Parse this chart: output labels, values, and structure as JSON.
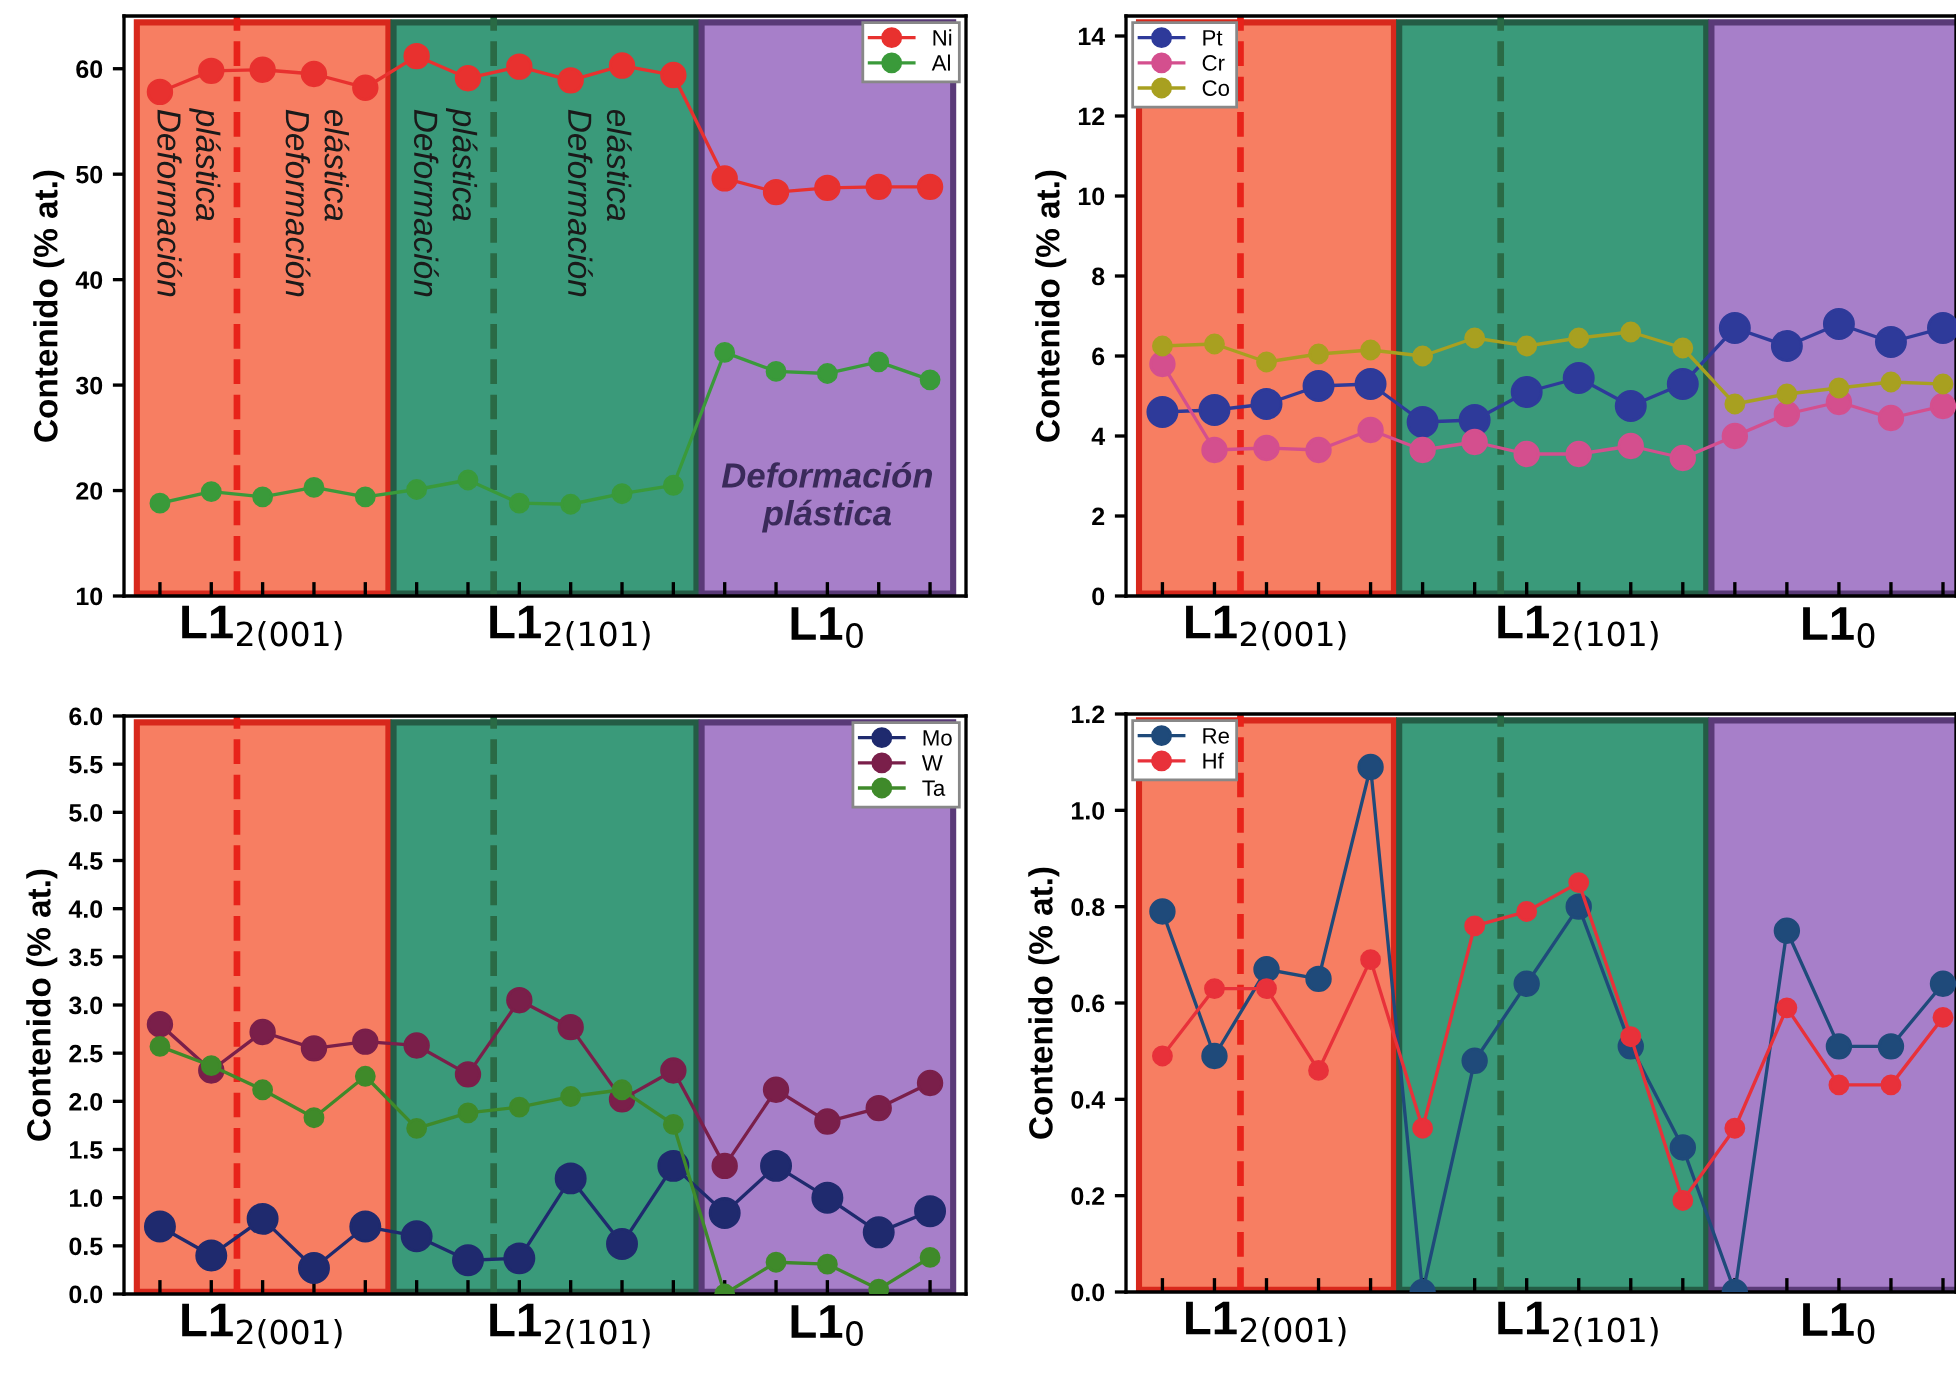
{
  "chart_data": [
    {
      "type": "line",
      "ylabel": "Contenido (% at.)",
      "ylim": [
        10,
        65
      ],
      "yticks": [
        10,
        20,
        30,
        40,
        50,
        60
      ],
      "categories": [
        null,
        null,
        "L1$_{2(001)}$",
        null,
        null,
        null,
        null,
        null,
        "L1$_{2(101)}$",
        null,
        null,
        null,
        null,
        "L1$_{0}$",
        null,
        null
      ],
      "marker": "circle",
      "grid": false,
      "legend": "top right",
      "series": [
        {
          "name": "Ni",
          "color": "#e8312f",
          "values": [
            57.8,
            59.8,
            59.9,
            59.5,
            58.2,
            61.2,
            59.1,
            60.2,
            58.9,
            60.3,
            59.4,
            49.6,
            48.3,
            48.7,
            48.8,
            48.8
          ]
        },
        {
          "name": "Al",
          "color": "#3a9a3a",
          "values": [
            18.8,
            19.9,
            19.4,
            20.3,
            19.4,
            20.1,
            21.0,
            18.8,
            18.7,
            19.7,
            20.5,
            33.1,
            31.3,
            31.1,
            32.2,
            30.5
          ]
        }
      ],
      "annotations": [
        "Deformación\nplástica",
        "Deformación\nelástica",
        "Deformación\nplástica",
        "Deformación\nelástica",
        "Deformación\nplástica"
      ]
    },
    {
      "type": "line",
      "ylabel": "Contenido (% at.)",
      "ylim": [
        0,
        14.5
      ],
      "yticks": [
        0,
        2,
        4,
        6,
        8,
        10,
        12,
        14
      ],
      "categories": [
        null,
        null,
        "L1$_{2(001)}$",
        null,
        null,
        null,
        null,
        null,
        "L1$_{2(101)}$",
        null,
        null,
        null,
        null,
        "L1$_{0}$",
        null,
        null
      ],
      "marker": "circle",
      "grid": false,
      "legend": "top left",
      "series": [
        {
          "name": "Pt",
          "color": "#2e3a9a",
          "values": [
            4.6,
            4.65,
            4.8,
            5.25,
            5.3,
            4.35,
            4.4,
            5.1,
            5.45,
            4.75,
            5.3,
            6.7,
            6.25,
            6.8,
            6.35,
            6.7
          ]
        },
        {
          "name": "Cr",
          "color": "#d44f8e",
          "values": [
            5.8,
            3.65,
            3.7,
            3.65,
            4.15,
            3.65,
            3.85,
            3.55,
            3.55,
            3.75,
            3.45,
            4.0,
            4.55,
            4.85,
            4.45,
            4.75
          ]
        },
        {
          "name": "Co",
          "color": "#a8a020",
          "values": [
            6.25,
            6.3,
            5.85,
            6.05,
            6.15,
            6.0,
            6.45,
            6.25,
            6.45,
            6.6,
            6.2,
            4.8,
            5.05,
            5.2,
            5.35,
            5.3
          ]
        }
      ]
    },
    {
      "type": "line",
      "ylabel": "Contenido (% at.)",
      "ylim": [
        0,
        6
      ],
      "yticks": [
        {
          "value": 0,
          "label": "0.0"
        },
        0.5,
        {
          "value": 1,
          "label": "1.0"
        },
        1.5,
        {
          "value": 2,
          "label": "2.0"
        },
        2.5,
        {
          "value": 3,
          "label": "3.0"
        },
        3.5,
        {
          "value": 4,
          "label": "4.0"
        },
        4.5,
        {
          "value": 5,
          "label": "5.0"
        },
        5.5,
        {
          "value": 6,
          "label": "6.0"
        }
      ],
      "categories": [
        null,
        null,
        "L1$_{2(001)}$",
        null,
        null,
        null,
        null,
        null,
        "L1$_{2(101)}$",
        null,
        null,
        null,
        null,
        "L1$_{0}$",
        null,
        null
      ],
      "marker": "circle",
      "grid": false,
      "legend": "top right",
      "series": [
        {
          "name": "Mo",
          "color": "#1f2a6e",
          "values": [
            0.7,
            0.4,
            0.78,
            0.27,
            0.7,
            0.6,
            0.35,
            0.37,
            1.2,
            0.52,
            1.33,
            0.84,
            1.33,
            1.0,
            0.64,
            0.86
          ]
        },
        {
          "name": "W",
          "color": "#7a1f4a",
          "values": [
            2.8,
            2.32,
            2.72,
            2.55,
            2.62,
            2.58,
            2.28,
            3.05,
            2.77,
            2.02,
            2.32,
            1.33,
            2.12,
            1.79,
            1.93,
            2.19
          ]
        },
        {
          "name": "Ta",
          "color": "#3f8a2a",
          "values": [
            2.57,
            2.37,
            2.12,
            1.83,
            2.26,
            1.72,
            1.88,
            1.94,
            2.05,
            2.12,
            1.76,
            0.0,
            0.33,
            0.31,
            0.05,
            0.38
          ]
        }
      ]
    },
    {
      "type": "line",
      "ylabel": "Contenido (% at.)",
      "ylim": [
        0,
        1.2
      ],
      "yticks": [
        {
          "value": 0,
          "label": "0.0"
        },
        0.2,
        0.4,
        0.6,
        0.8,
        {
          "value": 1,
          "label": "1.0"
        },
        1.2
      ],
      "categories": [
        null,
        null,
        "L1$_{2(001)}$",
        null,
        null,
        null,
        null,
        null,
        "L1$_{2(101)}$",
        null,
        null,
        null,
        null,
        "L1$_{0}$",
        null,
        null
      ],
      "marker": "circle",
      "grid": false,
      "legend": "top left",
      "series": [
        {
          "name": "Re",
          "color": "#1f4a7a",
          "values": [
            0.79,
            0.49,
            0.67,
            0.65,
            1.09,
            0.0,
            0.48,
            0.64,
            0.8,
            0.51,
            0.3,
            0.0,
            0.75,
            0.51,
            0.51,
            0.64
          ]
        },
        {
          "name": "Hf",
          "color": "#e8313a",
          "values": [
            0.49,
            0.63,
            0.63,
            0.46,
            0.69,
            0.34,
            0.76,
            0.79,
            0.85,
            0.53,
            0.19,
            0.34,
            0.59,
            0.43,
            0.43,
            0.57
          ]
        }
      ]
    }
  ]
}
